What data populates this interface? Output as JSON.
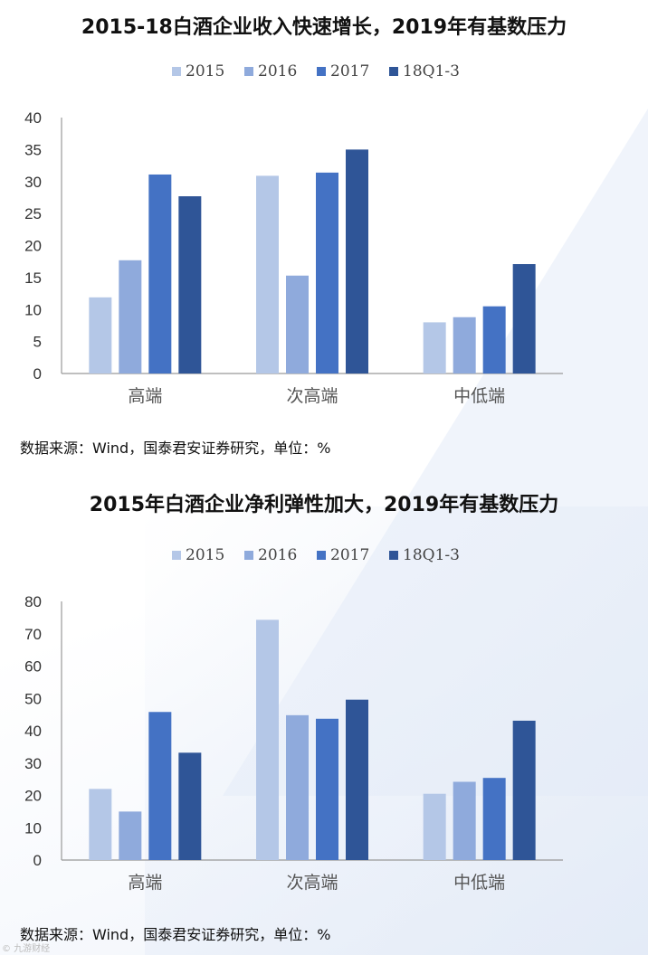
{
  "colors": [
    "#b4c7e7",
    "#8faadc",
    "#4472c4",
    "#2f5597"
  ],
  "chart_data": [
    {
      "type": "bar",
      "title": "2015-18白酒企业收入快速增长，2019年有基数压力",
      "categories": [
        "高端",
        "次高端",
        "中低端"
      ],
      "series": [
        {
          "name": "2015",
          "values": [
            11.9,
            30.9,
            8.0
          ]
        },
        {
          "name": "2016",
          "values": [
            17.7,
            15.3,
            8.8
          ]
        },
        {
          "name": "2017",
          "values": [
            31.1,
            31.4,
            10.5
          ]
        },
        {
          "name": "18Q1-3",
          "values": [
            27.7,
            35.0,
            17.1
          ]
        }
      ],
      "ylim": [
        0,
        40
      ],
      "yticks": [
        "0",
        "5",
        "10",
        "15",
        "20",
        "25",
        "30",
        "35",
        "40"
      ],
      "xlabel": "",
      "ylabel": "",
      "legend": "top-center",
      "grid": false
    },
    {
      "type": "bar",
      "title": "2015年白酒企业净利弹性加大，2019年有基数压力",
      "categories": [
        "高端",
        "次高端",
        "中低端"
      ],
      "series": [
        {
          "name": "2015",
          "values": [
            22.0,
            74.3,
            20.5
          ]
        },
        {
          "name": "2016",
          "values": [
            15.0,
            44.8,
            24.2
          ]
        },
        {
          "name": "2017",
          "values": [
            45.8,
            43.7,
            25.4
          ]
        },
        {
          "name": "18Q1-3",
          "values": [
            33.2,
            49.6,
            43.1
          ]
        }
      ],
      "ylim": [
        0,
        80
      ],
      "yticks": [
        "0",
        "10",
        "20",
        "30",
        "40",
        "50",
        "60",
        "70",
        "80"
      ],
      "xlabel": "",
      "ylabel": "",
      "legend": "top-center",
      "grid": false
    }
  ],
  "notes": {
    "source1": "数据来源：Wind，国泰君安证券研究，单位：%",
    "source2": "数据来源：Wind，国泰君安证券研究，单位：%"
  },
  "watermark": "© 九游财经"
}
